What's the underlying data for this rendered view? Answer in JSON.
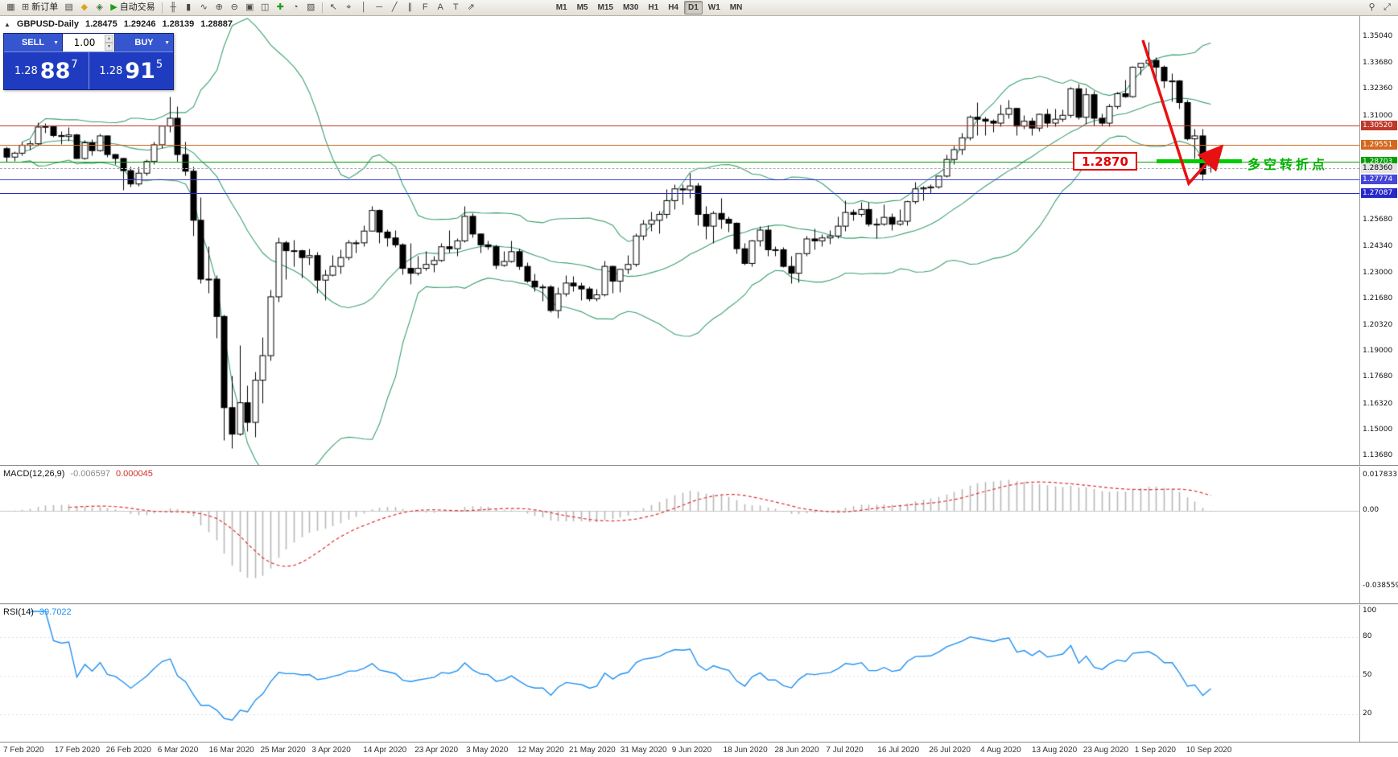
{
  "toolbar": {
    "left_buttons": [
      {
        "name": "new-chart",
        "glyph": "▦",
        "label": ""
      },
      {
        "name": "new-order",
        "glyph": "⊞",
        "label": "新订单"
      },
      {
        "name": "chart-profiles",
        "glyph": "▤",
        "label": ""
      },
      {
        "name": "favorites",
        "glyph": "◆",
        "label": "",
        "color": "#d9a520"
      },
      {
        "name": "alerts",
        "glyph": "◈",
        "label": "",
        "color": "#3b7e3b"
      },
      {
        "name": "autotrading",
        "glyph": "▶",
        "label": "自动交易",
        "color": "#1a9e1a"
      }
    ],
    "chart_buttons": [
      {
        "name": "bar-chart",
        "glyph": "╫"
      },
      {
        "name": "candlestick-chart",
        "glyph": "▮"
      },
      {
        "name": "line-chart",
        "glyph": "∿"
      },
      {
        "name": "zoom-in",
        "glyph": "⊕"
      },
      {
        "name": "zoom-out",
        "glyph": "⊖"
      },
      {
        "name": "tile-windows",
        "glyph": "▣"
      },
      {
        "name": "auto-arrange",
        "glyph": "◫"
      },
      {
        "name": "indicators",
        "glyph": "✚",
        "color": "#1a9e1a"
      },
      {
        "name": "periods",
        "glyph": "◔"
      },
      {
        "name": "templates",
        "glyph": "▨"
      }
    ],
    "tool_buttons": [
      {
        "name": "cursor",
        "glyph": "↖"
      },
      {
        "name": "crosshair",
        "glyph": "⌖"
      },
      {
        "name": "vertical-line",
        "glyph": "│"
      },
      {
        "name": "horizontal-line",
        "glyph": "─"
      },
      {
        "name": "trendline",
        "glyph": "╱"
      },
      {
        "name": "channel",
        "glyph": "∥"
      },
      {
        "name": "fibonacci",
        "glyph": "F"
      },
      {
        "name": "text",
        "glyph": "A"
      },
      {
        "name": "text-label",
        "glyph": "T"
      },
      {
        "name": "arrows",
        "glyph": "⇗"
      }
    ],
    "timeframes": [
      "M1",
      "M5",
      "M15",
      "M30",
      "H1",
      "H4",
      "D1",
      "W1",
      "MN"
    ],
    "active_timeframe": "D1",
    "right_buttons": [
      {
        "name": "search",
        "glyph": "⚲"
      },
      {
        "name": "expand",
        "glyph": "⤢"
      }
    ]
  },
  "quote_header": {
    "symbol": "GBPUSD-Daily",
    "open": "1.28475",
    "high": "1.29246",
    "low": "1.28139",
    "close": "1.28887"
  },
  "trade_panel": {
    "sell_label": "SELL",
    "buy_label": "BUY",
    "volume": "1.00",
    "sell_price": {
      "prefix": "1.28",
      "big": "88",
      "sup": "7"
    },
    "buy_price": {
      "prefix": "1.28",
      "big": "91",
      "sup": "5"
    }
  },
  "annotations": {
    "price_flag": "1.2870",
    "turning_point_text": "多空转折点"
  },
  "price_axis": {
    "ticks": [
      "1.35040",
      "1.33680",
      "1.32360",
      "1.31000",
      "1.25680",
      "1.24340",
      "1.23000",
      "1.21680",
      "1.20320",
      "1.19000",
      "1.17680",
      "1.16320",
      "1.15000",
      "1.13680"
    ],
    "markers": [
      {
        "label": "1.30520",
        "bg": "#c0392b",
        "fg": "#ffffff"
      },
      {
        "label": "1.29551",
        "bg": "#d2691e",
        "fg": "#ffffff"
      },
      {
        "label": "1.28703",
        "bg": "#00a000",
        "fg": "#ffffff"
      },
      {
        "label": "1.28360",
        "bg": "#e4e4e4",
        "fg": "#000000"
      },
      {
        "label": "1.27774",
        "bg": "#4646d8",
        "fg": "#ffffff"
      },
      {
        "label": "1.27087",
        "bg": "#2828c8",
        "fg": "#ffffff"
      }
    ]
  },
  "macd_panel": {
    "name": "MACD(12,26,9)",
    "main_value": "-0.006597",
    "signal_value": "0.000045",
    "axis_labels": [
      "0.017833",
      "0.00",
      "-0.038559"
    ]
  },
  "rsi_panel": {
    "name": "RSI(14)",
    "value": "39.7022",
    "axis_labels": [
      "100",
      "80",
      "50",
      "20"
    ]
  },
  "time_axis": {
    "dates": [
      "7 Feb 2020",
      "17 Feb 2020",
      "26 Feb 2020",
      "6 Mar 2020",
      "16 Mar 2020",
      "25 Mar 2020",
      "3 Apr 2020",
      "14 Apr 2020",
      "23 Apr 2020",
      "3 May 2020",
      "12 May 2020",
      "21 May 2020",
      "31 May 2020",
      "9 Jun 2020",
      "18 Jun 2020",
      "28 Jun 2020",
      "7 Jul 2020",
      "16 Jul 2020",
      "26 Jul 2020",
      "4 Aug 2020",
      "13 Aug 2020",
      "23 Aug 2020",
      "1 Sep 2020",
      "10 Sep 2020"
    ]
  },
  "chart_data": {
    "type": "candlestick",
    "symbol": "GBPUSD",
    "timeframe": "Daily",
    "date_range": "7 Feb 2020 - 11 Sep 2020",
    "price_range": [
      1.1368,
      1.3504
    ],
    "candle_colors": {
      "bull_fill": "#ffffff",
      "bear_fill": "#000000",
      "outline": "#000000"
    },
    "hlines": [
      {
        "price": 1.3052,
        "color": "#c0392b",
        "style": "solid"
      },
      {
        "price": 1.29551,
        "color": "#d2691e",
        "style": "solid"
      },
      {
        "price": 1.28703,
        "color": "#00a000",
        "style": "solid"
      },
      {
        "price": 1.2836,
        "color": "#b0b0b0",
        "style": "dashed"
      },
      {
        "price": 1.27774,
        "color": "#4646d8",
        "style": "solid"
      },
      {
        "price": 1.27087,
        "color": "#2828c8",
        "style": "solid"
      }
    ],
    "indicators": {
      "bollinger": {
        "period": 20,
        "deviation": 2,
        "color": "#3aa06e"
      },
      "macd": {
        "fast": 12,
        "slow": 26,
        "signal": 9,
        "current_main": -0.006597,
        "current_signal": 4.5e-05,
        "histogram_color": "#b8b8b8",
        "signal_color": "#e03030"
      },
      "rsi": {
        "period": 14,
        "current": 39.7022,
        "color": "#2090f0",
        "levels": [
          80,
          50,
          20
        ]
      }
    },
    "candles": [
      [
        1.2935,
        1.2945,
        1.287,
        1.2892
      ],
      [
        1.2892,
        1.292,
        1.2872,
        1.2912
      ],
      [
        1.2912,
        1.297,
        1.29,
        1.2952
      ],
      [
        1.2952,
        1.298,
        1.293,
        1.296
      ],
      [
        1.296,
        1.307,
        1.295,
        1.3045
      ],
      [
        1.3045,
        1.3065,
        1.3015,
        1.3048
      ],
      [
        1.3048,
        1.3055,
        1.2995,
        1.3002
      ],
      [
        1.3002,
        1.3025,
        1.296,
        1.2997
      ],
      [
        1.2997,
        1.3045,
        1.2975,
        1.3005
      ],
      [
        1.3005,
        1.301,
        1.2885,
        1.2885
      ],
      [
        1.2885,
        1.298,
        1.288,
        1.2965
      ],
      [
        1.2965,
        1.2985,
        1.29,
        1.2925
      ],
      [
        1.2925,
        1.301,
        1.292,
        1.3
      ],
      [
        1.3,
        1.3005,
        1.2895,
        1.2905
      ],
      [
        1.2905,
        1.291,
        1.2855,
        1.2885
      ],
      [
        1.2885,
        1.289,
        1.2725,
        1.2823
      ],
      [
        1.2823,
        1.2845,
        1.274,
        1.2755
      ],
      [
        1.2755,
        1.2845,
        1.2745,
        1.281
      ],
      [
        1.281,
        1.288,
        1.28,
        1.287
      ],
      [
        1.287,
        1.297,
        1.2855,
        1.2955
      ],
      [
        1.2955,
        1.3055,
        1.294,
        1.305
      ],
      [
        1.305,
        1.32,
        1.302,
        1.309
      ],
      [
        1.309,
        1.315,
        1.287,
        1.2905
      ],
      [
        1.2905,
        1.297,
        1.28,
        1.282
      ],
      [
        1.282,
        1.2845,
        1.249,
        1.257
      ],
      [
        1.257,
        1.269,
        1.225,
        1.227
      ],
      [
        1.227,
        1.244,
        1.22,
        1.227
      ],
      [
        1.227,
        1.229,
        1.197,
        1.208
      ],
      [
        1.208,
        1.209,
        1.145,
        1.1615
      ],
      [
        1.1615,
        1.178,
        1.141,
        1.148
      ],
      [
        1.148,
        1.1935,
        1.1475,
        1.164
      ],
      [
        1.164,
        1.173,
        1.1495,
        1.154
      ],
      [
        1.154,
        1.18,
        1.1465,
        1.1755
      ],
      [
        1.1755,
        1.1975,
        1.164,
        1.188
      ],
      [
        1.188,
        1.2215,
        1.1855,
        1.218
      ],
      [
        1.218,
        1.2485,
        1.2155,
        1.2455
      ],
      [
        1.2455,
        1.2465,
        1.227,
        1.2415
      ],
      [
        1.2415,
        1.247,
        1.2335,
        1.2415
      ],
      [
        1.2415,
        1.242,
        1.228,
        1.238
      ],
      [
        1.238,
        1.2425,
        1.2345,
        1.239
      ],
      [
        1.239,
        1.241,
        1.22,
        1.2265
      ],
      [
        1.2265,
        1.232,
        1.2165,
        1.229
      ],
      [
        1.229,
        1.2395,
        1.2285,
        1.2335
      ],
      [
        1.2335,
        1.242,
        1.23,
        1.238
      ],
      [
        1.238,
        1.247,
        1.237,
        1.2455
      ],
      [
        1.2455,
        1.247,
        1.2405,
        1.2455
      ],
      [
        1.2455,
        1.2545,
        1.244,
        1.2515
      ],
      [
        1.2515,
        1.2645,
        1.2515,
        1.262
      ],
      [
        1.262,
        1.2625,
        1.2455,
        1.251
      ],
      [
        1.251,
        1.2525,
        1.244,
        1.248
      ],
      [
        1.248,
        1.252,
        1.2435,
        1.2445
      ],
      [
        1.2445,
        1.2455,
        1.2295,
        1.2325
      ],
      [
        1.2325,
        1.2455,
        1.2245,
        1.23
      ],
      [
        1.23,
        1.239,
        1.229,
        1.2325
      ],
      [
        1.2325,
        1.2415,
        1.2315,
        1.2345
      ],
      [
        1.2345,
        1.239,
        1.2305,
        1.2365
      ],
      [
        1.2365,
        1.2455,
        1.236,
        1.2435
      ],
      [
        1.2435,
        1.252,
        1.2405,
        1.2425
      ],
      [
        1.2425,
        1.248,
        1.239,
        1.2465
      ],
      [
        1.2465,
        1.2645,
        1.246,
        1.259
      ],
      [
        1.259,
        1.2605,
        1.2485,
        1.25
      ],
      [
        1.25,
        1.2505,
        1.2405,
        1.2445
      ],
      [
        1.2445,
        1.2465,
        1.242,
        1.2435
      ],
      [
        1.2435,
        1.2445,
        1.2325,
        1.234
      ],
      [
        1.234,
        1.2415,
        1.2335,
        1.236
      ],
      [
        1.236,
        1.2465,
        1.2355,
        1.241
      ],
      [
        1.241,
        1.2425,
        1.232,
        1.2335
      ],
      [
        1.2335,
        1.2355,
        1.2255,
        1.226
      ],
      [
        1.226,
        1.23,
        1.221,
        1.223
      ],
      [
        1.223,
        1.2245,
        1.216,
        1.223
      ],
      [
        1.223,
        1.224,
        1.21,
        1.211
      ],
      [
        1.211,
        1.223,
        1.2075,
        1.2195
      ],
      [
        1.2195,
        1.229,
        1.2185,
        1.225
      ],
      [
        1.225,
        1.2285,
        1.221,
        1.2235
      ],
      [
        1.2235,
        1.2255,
        1.2165,
        1.222
      ],
      [
        1.222,
        1.2235,
        1.216,
        1.217
      ],
      [
        1.217,
        1.222,
        1.216,
        1.219
      ],
      [
        1.219,
        1.2365,
        1.2185,
        1.2335
      ],
      [
        1.2335,
        1.234,
        1.22,
        1.226
      ],
      [
        1.226,
        1.2325,
        1.2205,
        1.232
      ],
      [
        1.232,
        1.2395,
        1.23,
        1.2345
      ],
      [
        1.2345,
        1.2505,
        1.2335,
        1.249
      ],
      [
        1.249,
        1.2575,
        1.247,
        1.255
      ],
      [
        1.255,
        1.2615,
        1.2515,
        1.257
      ],
      [
        1.257,
        1.262,
        1.2505,
        1.26
      ],
      [
        1.26,
        1.273,
        1.258,
        1.267
      ],
      [
        1.267,
        1.2755,
        1.2625,
        1.273
      ],
      [
        1.273,
        1.2755,
        1.265,
        1.2725
      ],
      [
        1.2725,
        1.281,
        1.2685,
        1.2745
      ],
      [
        1.2745,
        1.276,
        1.2545,
        1.26
      ],
      [
        1.26,
        1.2645,
        1.2475,
        1.254
      ],
      [
        1.254,
        1.262,
        1.2455,
        1.2605
      ],
      [
        1.2605,
        1.2685,
        1.253,
        1.2575
      ],
      [
        1.2575,
        1.259,
        1.251,
        1.2555
      ],
      [
        1.2555,
        1.256,
        1.24,
        1.2425
      ],
      [
        1.2425,
        1.2455,
        1.2345,
        1.235
      ],
      [
        1.235,
        1.247,
        1.2335,
        1.2465
      ],
      [
        1.2465,
        1.254,
        1.244,
        1.252
      ],
      [
        1.252,
        1.2545,
        1.239,
        1.242
      ],
      [
        1.242,
        1.244,
        1.239,
        1.242
      ],
      [
        1.242,
        1.2435,
        1.233,
        1.2335
      ],
      [
        1.2335,
        1.239,
        1.225,
        1.23
      ],
      [
        1.23,
        1.24,
        1.2255,
        1.24
      ],
      [
        1.24,
        1.249,
        1.239,
        1.2475
      ],
      [
        1.2475,
        1.253,
        1.242,
        1.2465
      ],
      [
        1.2465,
        1.25,
        1.244,
        1.248
      ],
      [
        1.248,
        1.252,
        1.245,
        1.249
      ],
      [
        1.249,
        1.259,
        1.248,
        1.254
      ],
      [
        1.254,
        1.267,
        1.2515,
        1.261
      ],
      [
        1.261,
        1.2625,
        1.257,
        1.26
      ],
      [
        1.26,
        1.2665,
        1.259,
        1.2625
      ],
      [
        1.2625,
        1.2665,
        1.254,
        1.255
      ],
      [
        1.255,
        1.258,
        1.248,
        1.255
      ],
      [
        1.255,
        1.265,
        1.2545,
        1.2585
      ],
      [
        1.2585,
        1.2605,
        1.252,
        1.255
      ],
      [
        1.255,
        1.2625,
        1.2545,
        1.2565
      ],
      [
        1.2565,
        1.267,
        1.2545,
        1.2665
      ],
      [
        1.2665,
        1.2765,
        1.2655,
        1.273
      ],
      [
        1.273,
        1.2745,
        1.267,
        1.2735
      ],
      [
        1.2735,
        1.2755,
        1.271,
        1.274
      ],
      [
        1.274,
        1.28,
        1.2735,
        1.2795
      ],
      [
        1.2795,
        1.2905,
        1.279,
        1.288
      ],
      [
        1.288,
        1.295,
        1.2855,
        1.293
      ],
      [
        1.293,
        1.3015,
        1.2905,
        1.299
      ],
      [
        1.299,
        1.3105,
        1.298,
        1.3095
      ],
      [
        1.3095,
        1.317,
        1.3005,
        1.3085
      ],
      [
        1.3085,
        1.31,
        1.3005,
        1.3075
      ],
      [
        1.3075,
        1.3085,
        1.302,
        1.3065
      ],
      [
        1.3065,
        1.316,
        1.305,
        1.311
      ],
      [
        1.311,
        1.3185,
        1.309,
        1.314
      ],
      [
        1.314,
        1.3145,
        1.3005,
        1.305
      ],
      [
        1.305,
        1.3105,
        1.3035,
        1.3075
      ],
      [
        1.3075,
        1.3095,
        1.3005,
        1.304
      ],
      [
        1.304,
        1.3115,
        1.3025,
        1.311
      ],
      [
        1.311,
        1.314,
        1.3045,
        1.3065
      ],
      [
        1.3065,
        1.314,
        1.305,
        1.3085
      ],
      [
        1.3085,
        1.3135,
        1.3075,
        1.3105
      ],
      [
        1.3105,
        1.325,
        1.3095,
        1.324
      ],
      [
        1.324,
        1.3265,
        1.3085,
        1.3095
      ],
      [
        1.3095,
        1.3245,
        1.306,
        1.321
      ],
      [
        1.321,
        1.323,
        1.3055,
        1.309
      ],
      [
        1.309,
        1.3115,
        1.3055,
        1.3065
      ],
      [
        1.3065,
        1.3165,
        1.305,
        1.315
      ],
      [
        1.315,
        1.3225,
        1.314,
        1.3215
      ],
      [
        1.3215,
        1.3285,
        1.3195,
        1.32
      ],
      [
        1.32,
        1.3355,
        1.3195,
        1.335
      ],
      [
        1.335,
        1.337,
        1.331,
        1.337
      ],
      [
        1.337,
        1.348,
        1.3355,
        1.3385
      ],
      [
        1.3385,
        1.34,
        1.3285,
        1.335
      ],
      [
        1.335,
        1.336,
        1.3245,
        1.328
      ],
      [
        1.328,
        1.332,
        1.3175,
        1.328
      ],
      [
        1.328,
        1.3285,
        1.314,
        1.317
      ],
      [
        1.317,
        1.3185,
        1.298,
        1.2985
      ],
      [
        1.2985,
        1.3035,
        1.2885,
        1.3
      ],
      [
        1.3,
        1.3035,
        1.2775,
        1.2805
      ],
      [
        1.2848,
        1.2925,
        1.2814,
        1.2889
      ]
    ]
  }
}
